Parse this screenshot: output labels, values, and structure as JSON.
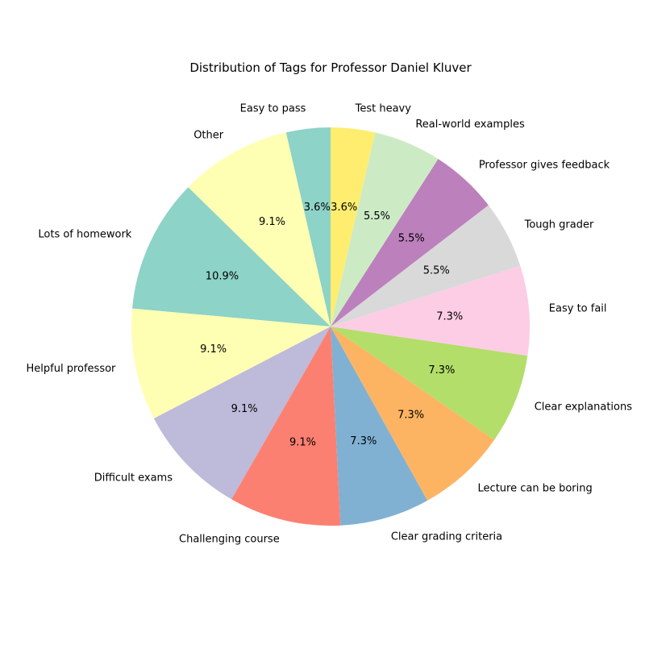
{
  "chart_data": {
    "type": "pie",
    "title": "Distribution of Tags for Professor Daniel Kluver",
    "start_angle_deg": 90,
    "direction": "counterclockwise",
    "slices": [
      {
        "label": "Easy to pass",
        "value": 3.6,
        "pct_label": "3.6%",
        "color": "#8dd3c7"
      },
      {
        "label": "Other",
        "value": 9.1,
        "pct_label": "9.1%",
        "color": "#ffffb3"
      },
      {
        "label": "Lots of homework",
        "value": 10.9,
        "pct_label": "10.9%",
        "color": "#8dd3c7"
      },
      {
        "label": "Helpful professor",
        "value": 9.1,
        "pct_label": "9.1%",
        "color": "#ffffb3"
      },
      {
        "label": "Difficult exams",
        "value": 9.1,
        "pct_label": "9.1%",
        "color": "#bebada"
      },
      {
        "label": "Challenging course",
        "value": 9.1,
        "pct_label": "9.1%",
        "color": "#fb8072"
      },
      {
        "label": "Clear grading criteria",
        "value": 7.3,
        "pct_label": "7.3%",
        "color": "#80b1d3"
      },
      {
        "label": "Lecture can be boring",
        "value": 7.3,
        "pct_label": "7.3%",
        "color": "#fdb462"
      },
      {
        "label": "Clear explanations",
        "value": 7.3,
        "pct_label": "7.3%",
        "color": "#b3de69"
      },
      {
        "label": "Easy to fail",
        "value": 7.3,
        "pct_label": "7.3%",
        "color": "#fccde5"
      },
      {
        "label": "Tough grader",
        "value": 5.5,
        "pct_label": "5.5%",
        "color": "#d9d9d9"
      },
      {
        "label": "Professor gives feedback",
        "value": 5.5,
        "pct_label": "5.5%",
        "color": "#bc80bd"
      },
      {
        "label": "Real-world examples",
        "value": 5.5,
        "pct_label": "5.5%",
        "color": "#ccebc5"
      },
      {
        "label": "Test heavy",
        "value": 3.6,
        "pct_label": "3.6%",
        "color": "#ffed6f"
      }
    ]
  }
}
